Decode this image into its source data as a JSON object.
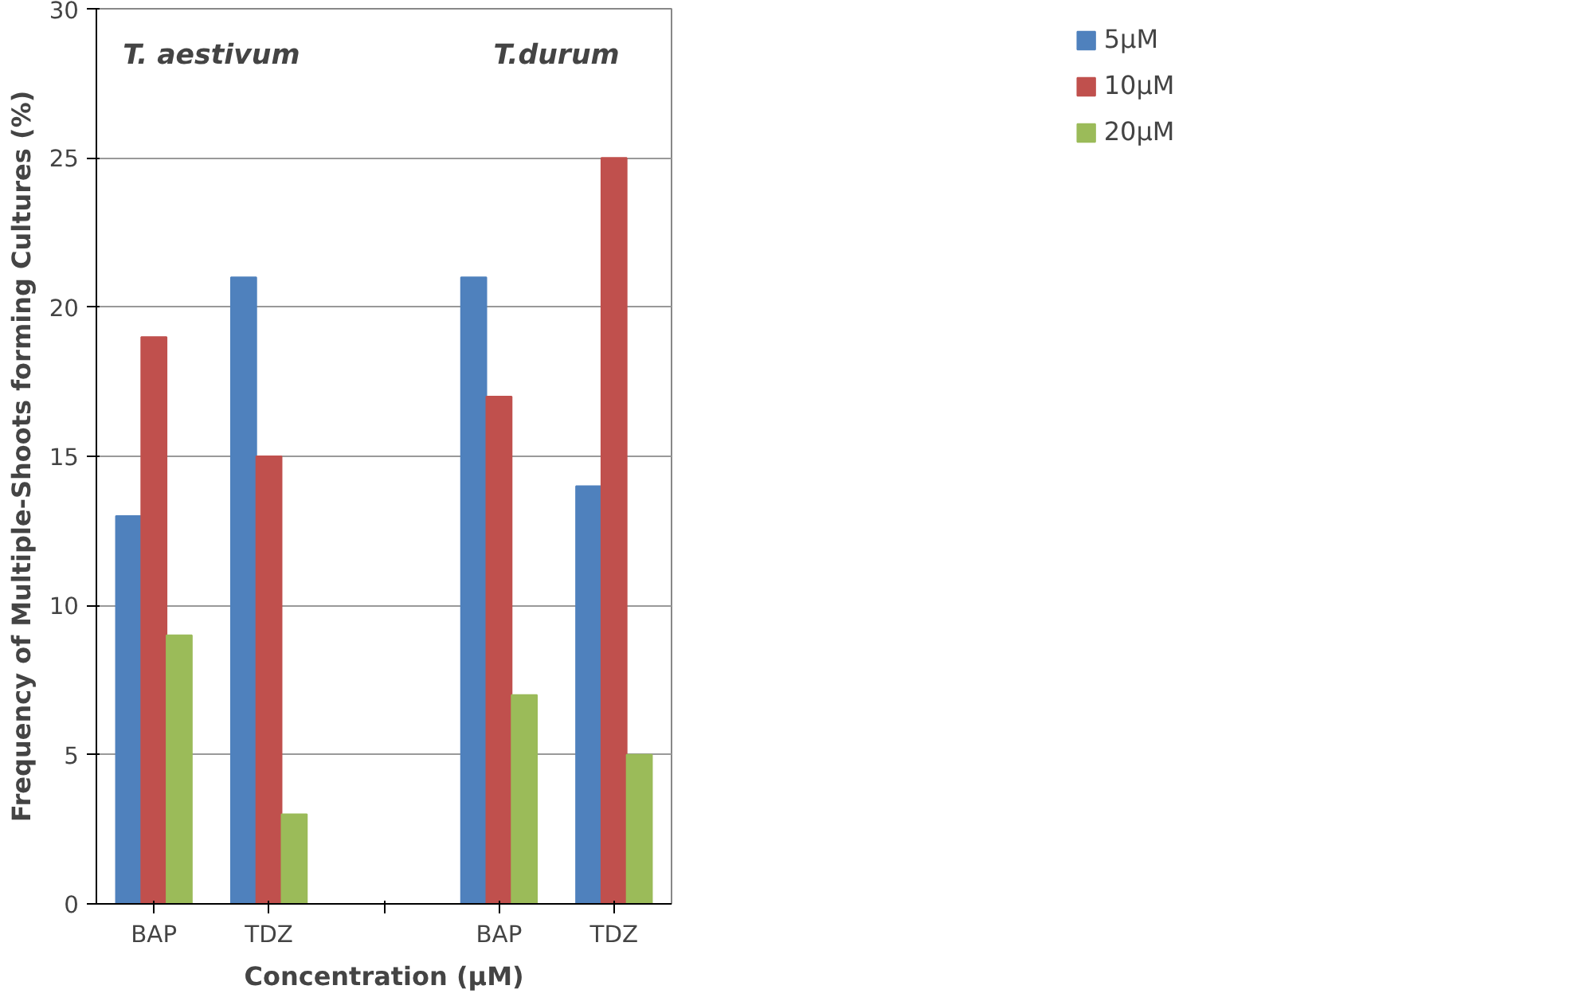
{
  "chart_data": {
    "type": "bar",
    "xlabel": "Concentration (µM)",
    "ylabel": "Frequency of Multiple-Shoots forming Cultures (%)",
    "categories": [
      "BAP",
      "TDZ",
      null,
      "BAP",
      "TDZ"
    ],
    "series": [
      {
        "name": "5µM",
        "color": "#4f81bd",
        "values": [
          13,
          21,
          null,
          21,
          14
        ]
      },
      {
        "name": "10µM",
        "color": "#c0504d",
        "values": [
          19,
          15,
          null,
          17,
          25
        ]
      },
      {
        "name": "20µM",
        "color": "#9bbb59",
        "values": [
          9,
          3,
          null,
          7,
          5
        ]
      }
    ],
    "annotations": [
      "T. aestivum",
      "T.durum"
    ],
    "ylim": [
      0,
      30
    ],
    "yticks": [
      0,
      5,
      10,
      15,
      20,
      25,
      30
    ],
    "grid": "y",
    "legend": "top right"
  }
}
